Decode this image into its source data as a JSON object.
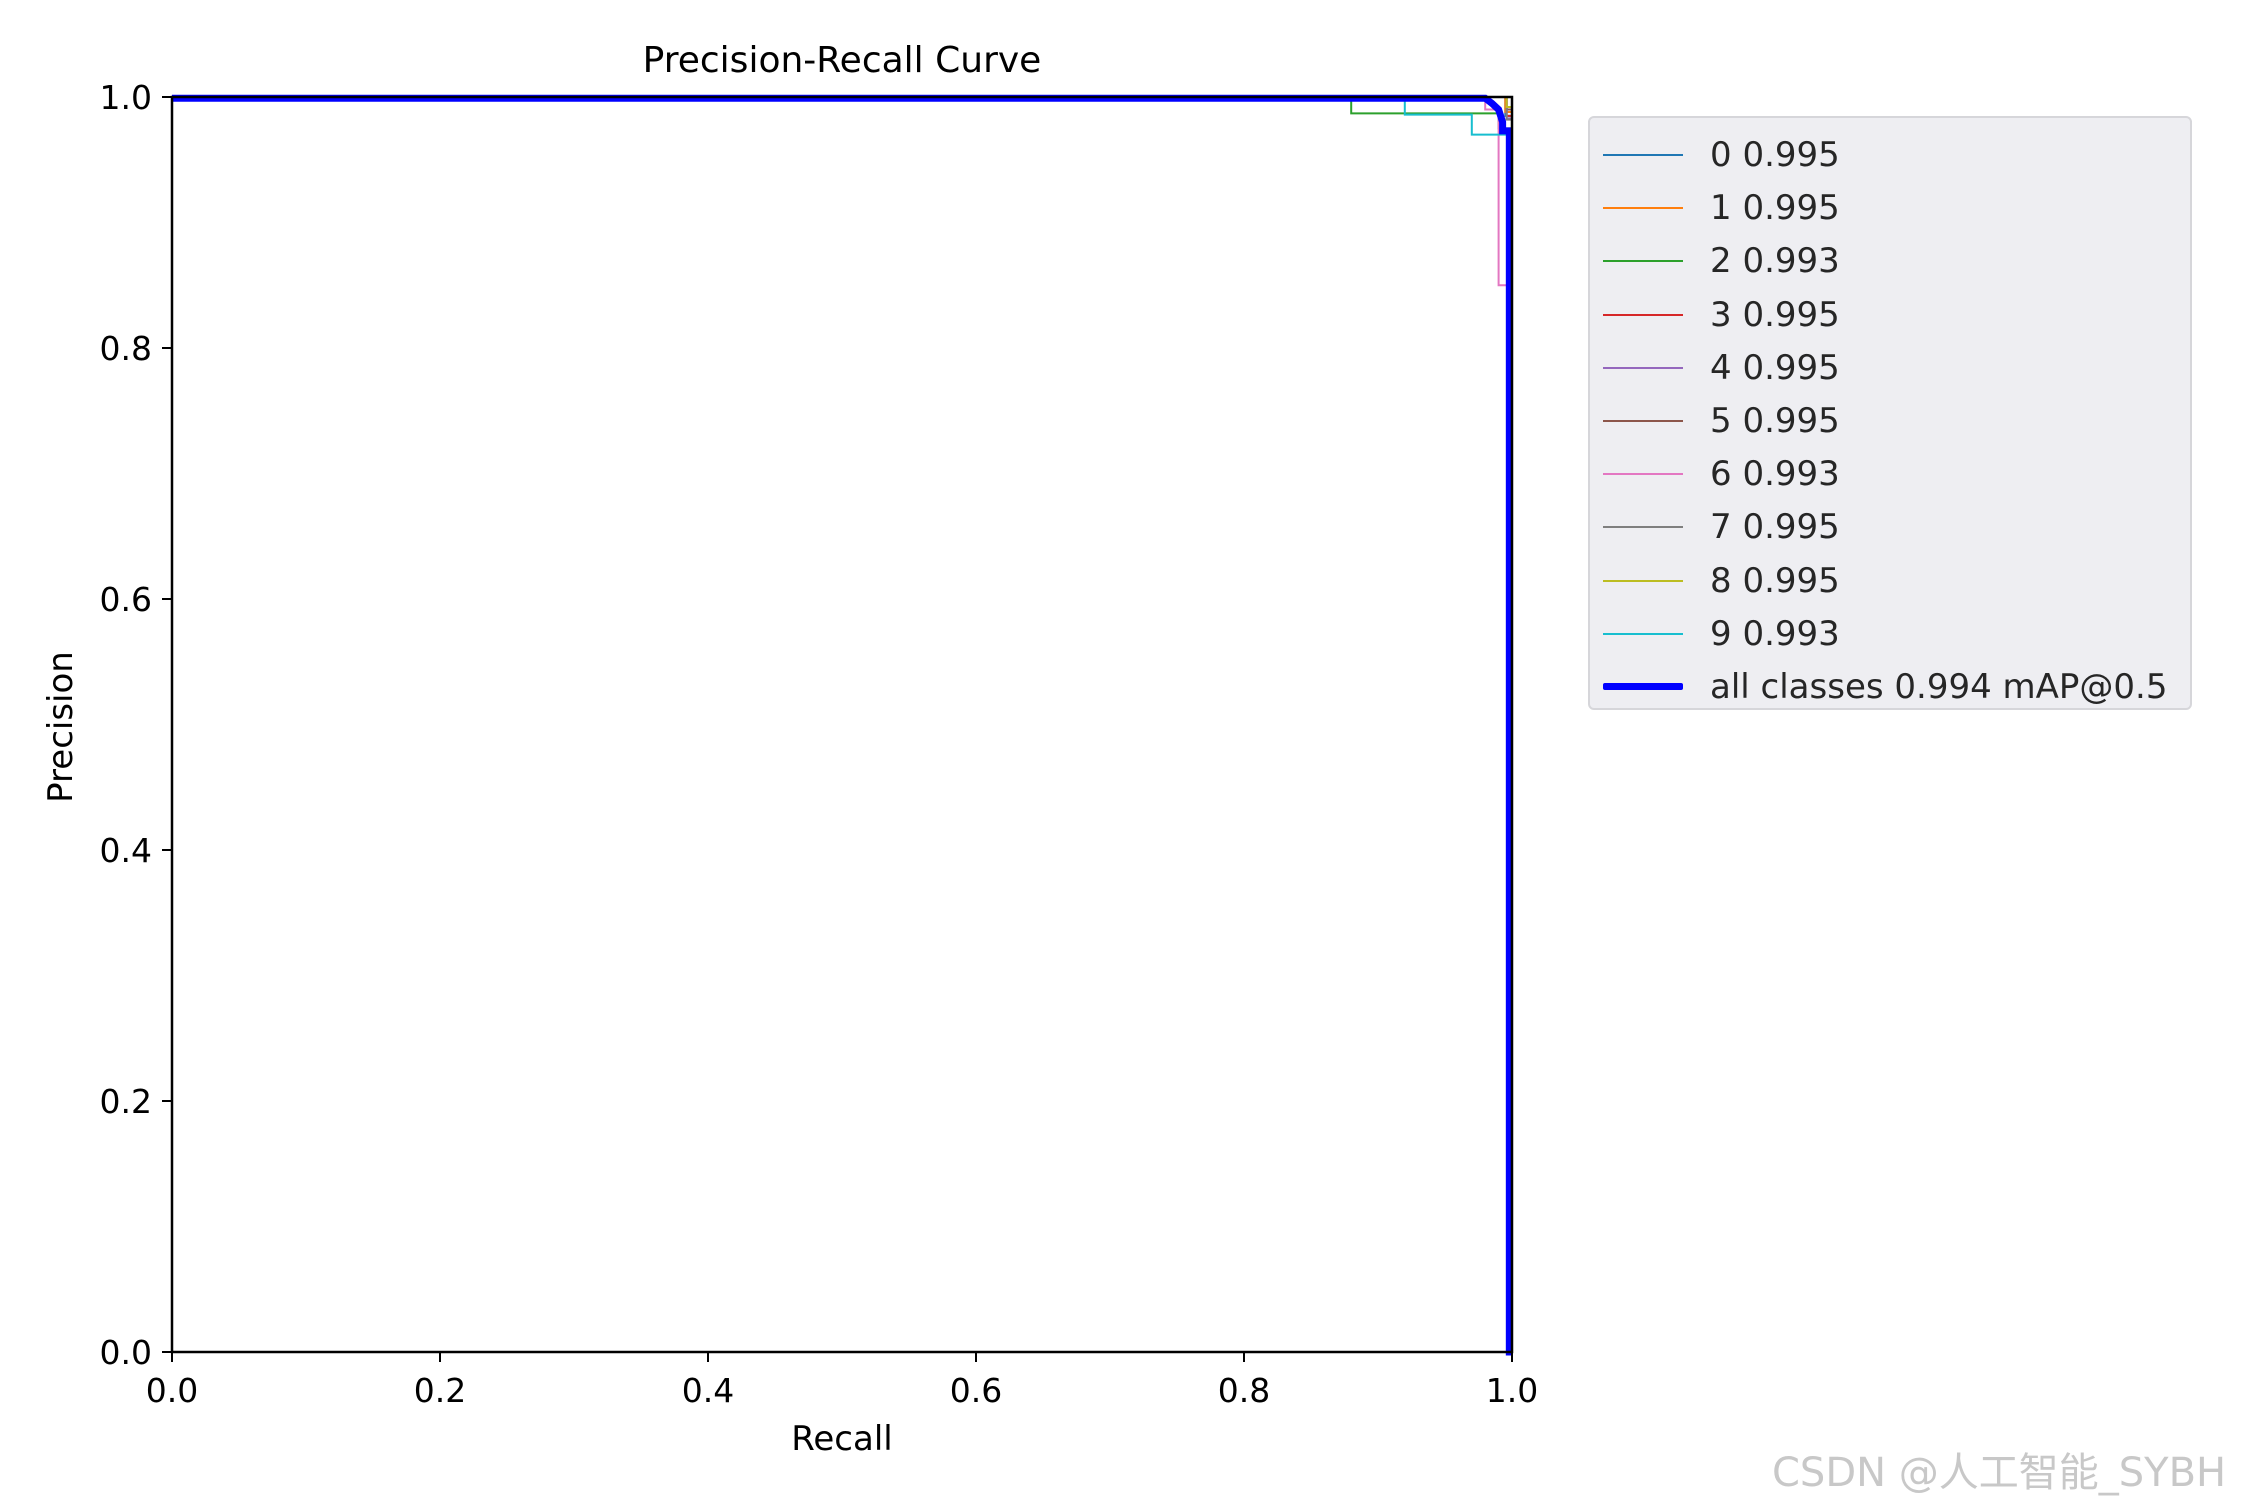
{
  "chart_data": {
    "type": "line",
    "title": "Precision-Recall Curve",
    "xlabel": "Recall",
    "ylabel": "Precision",
    "xlim": [
      0,
      1
    ],
    "ylim": [
      0,
      1
    ],
    "xticks": [
      "0.0",
      "0.2",
      "0.4",
      "0.6",
      "0.8",
      "1.0"
    ],
    "yticks": [
      "0.0",
      "0.2",
      "0.4",
      "0.6",
      "0.8",
      "1.0"
    ],
    "grid": false,
    "legend_position": "outside-right",
    "series": [
      {
        "name": "0 0.995",
        "color": "#1f77b4",
        "x": [
          0,
          0.995,
          0.995,
          1.0,
          1.0
        ],
        "y": [
          1.0,
          1.0,
          0.985,
          0.985,
          0.0
        ]
      },
      {
        "name": "1 0.995",
        "color": "#ff7f0e",
        "x": [
          0,
          0.995,
          0.995,
          1.0,
          1.0
        ],
        "y": [
          1.0,
          1.0,
          0.988,
          0.988,
          0.0
        ]
      },
      {
        "name": "2 0.993",
        "color": "#2ca02c",
        "x": [
          0,
          0.88,
          0.88,
          0.99,
          0.99,
          1.0,
          1.0
        ],
        "y": [
          1.0,
          1.0,
          0.987,
          0.987,
          0.975,
          0.975,
          0.0
        ]
      },
      {
        "name": "3 0.995",
        "color": "#d62728",
        "x": [
          0,
          0.996,
          0.996,
          1.0,
          1.0
        ],
        "y": [
          1.0,
          1.0,
          0.985,
          0.985,
          0.0
        ]
      },
      {
        "name": "4 0.995",
        "color": "#9467bd",
        "x": [
          0,
          0.996,
          0.996,
          1.0,
          1.0
        ],
        "y": [
          1.0,
          1.0,
          0.983,
          0.983,
          0.0
        ]
      },
      {
        "name": "5 0.995",
        "color": "#8c564b",
        "x": [
          0,
          0.996,
          0.996,
          1.0,
          1.0
        ],
        "y": [
          1.0,
          1.0,
          0.99,
          0.99,
          0.0
        ]
      },
      {
        "name": "6 0.993",
        "color": "#e377c2",
        "x": [
          0,
          0.98,
          0.98,
          0.99,
          0.99,
          1.0,
          1.0
        ],
        "y": [
          1.0,
          1.0,
          0.99,
          0.99,
          0.85,
          0.85,
          0.0
        ]
      },
      {
        "name": "7 0.995",
        "color": "#7f7f7f",
        "x": [
          0,
          0.996,
          0.996,
          1.0,
          1.0
        ],
        "y": [
          1.0,
          1.0,
          0.982,
          0.982,
          0.0
        ]
      },
      {
        "name": "8 0.995",
        "color": "#bcbd22",
        "x": [
          0,
          0.996,
          0.996,
          1.0,
          1.0
        ],
        "y": [
          1.0,
          1.0,
          0.992,
          0.992,
          0.0
        ]
      },
      {
        "name": "9 0.993",
        "color": "#17becf",
        "x": [
          0,
          0.92,
          0.92,
          0.97,
          0.97,
          0.985,
          0.985,
          1.0,
          1.0
        ],
        "y": [
          1.0,
          1.0,
          0.986,
          0.986,
          0.97,
          0.97,
          0.97,
          0.97,
          0.0
        ]
      },
      {
        "name": "all classes 0.994 mAP@0.5",
        "color": "#0000ff",
        "bold": true,
        "x": [
          0,
          0.98,
          0.985,
          0.99,
          0.993,
          0.993,
          0.998,
          0.998,
          1.0
        ],
        "y": [
          0.999,
          0.999,
          0.995,
          0.99,
          0.98,
          0.973,
          0.973,
          0.0,
          0.0
        ]
      }
    ]
  },
  "watermark": "CSDN @人工智能_SYBH"
}
